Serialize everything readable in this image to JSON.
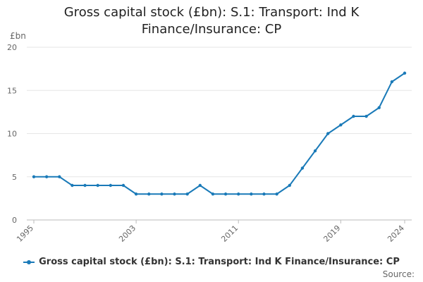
{
  "chart_data": {
    "type": "line",
    "title_lines": [
      "Gross capital stock (£bn): S.1: Transport: Ind K",
      "Finance/Insurance: CP"
    ],
    "ylabel": "£bn",
    "xlabel": "",
    "ylim": [
      0,
      20
    ],
    "yticks": [
      0,
      5,
      10,
      15,
      20
    ],
    "xlim": [
      1995,
      2024
    ],
    "xticks": [
      1995,
      2003,
      2011,
      2019,
      2024
    ],
    "grid": "horizontal",
    "legend": "bottom",
    "colors": {
      "series": "#1a7ab8"
    },
    "series": [
      {
        "name": "Gross capital stock (£bn): S.1: Transport: Ind K Finance/Insurance: CP",
        "x": [
          1995,
          1996,
          1997,
          1998,
          1999,
          2000,
          2001,
          2002,
          2003,
          2004,
          2005,
          2006,
          2007,
          2008,
          2009,
          2010,
          2011,
          2012,
          2013,
          2014,
          2015,
          2016,
          2017,
          2018,
          2019,
          2020,
          2021,
          2022,
          2023,
          2024
        ],
        "y": [
          5,
          5,
          5,
          4,
          4,
          4,
          4,
          4,
          3,
          3,
          3,
          3,
          3,
          4,
          3,
          3,
          3,
          3,
          3,
          3,
          4,
          6,
          8,
          10,
          11,
          12,
          12,
          13,
          16,
          17
        ]
      }
    ]
  },
  "source_label": "Source:"
}
